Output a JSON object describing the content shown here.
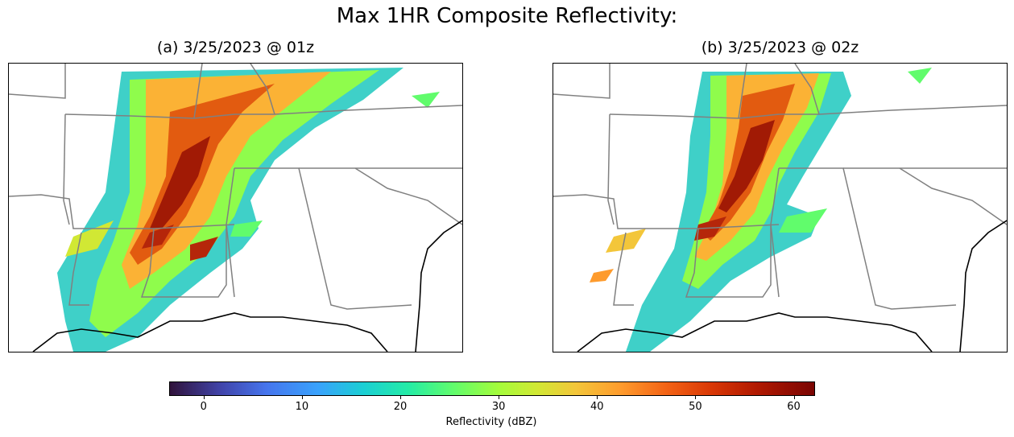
{
  "figure": {
    "title": "Max 1HR Composite Reflectivity:"
  },
  "panels": [
    {
      "title": "(a) 3/25/2023 @ 01z"
    },
    {
      "title": "(b) 3/25/2023 @ 02z"
    }
  ],
  "colorbar": {
    "label": "Reflectivity (dBZ)",
    "colormap": "turbo",
    "range": [
      -3.5,
      62
    ],
    "ticks": [
      "0",
      "10",
      "20",
      "30",
      "40",
      "50",
      "60"
    ]
  },
  "map": {
    "boundary_color": "#808080",
    "coastline_color": "#000000"
  }
}
